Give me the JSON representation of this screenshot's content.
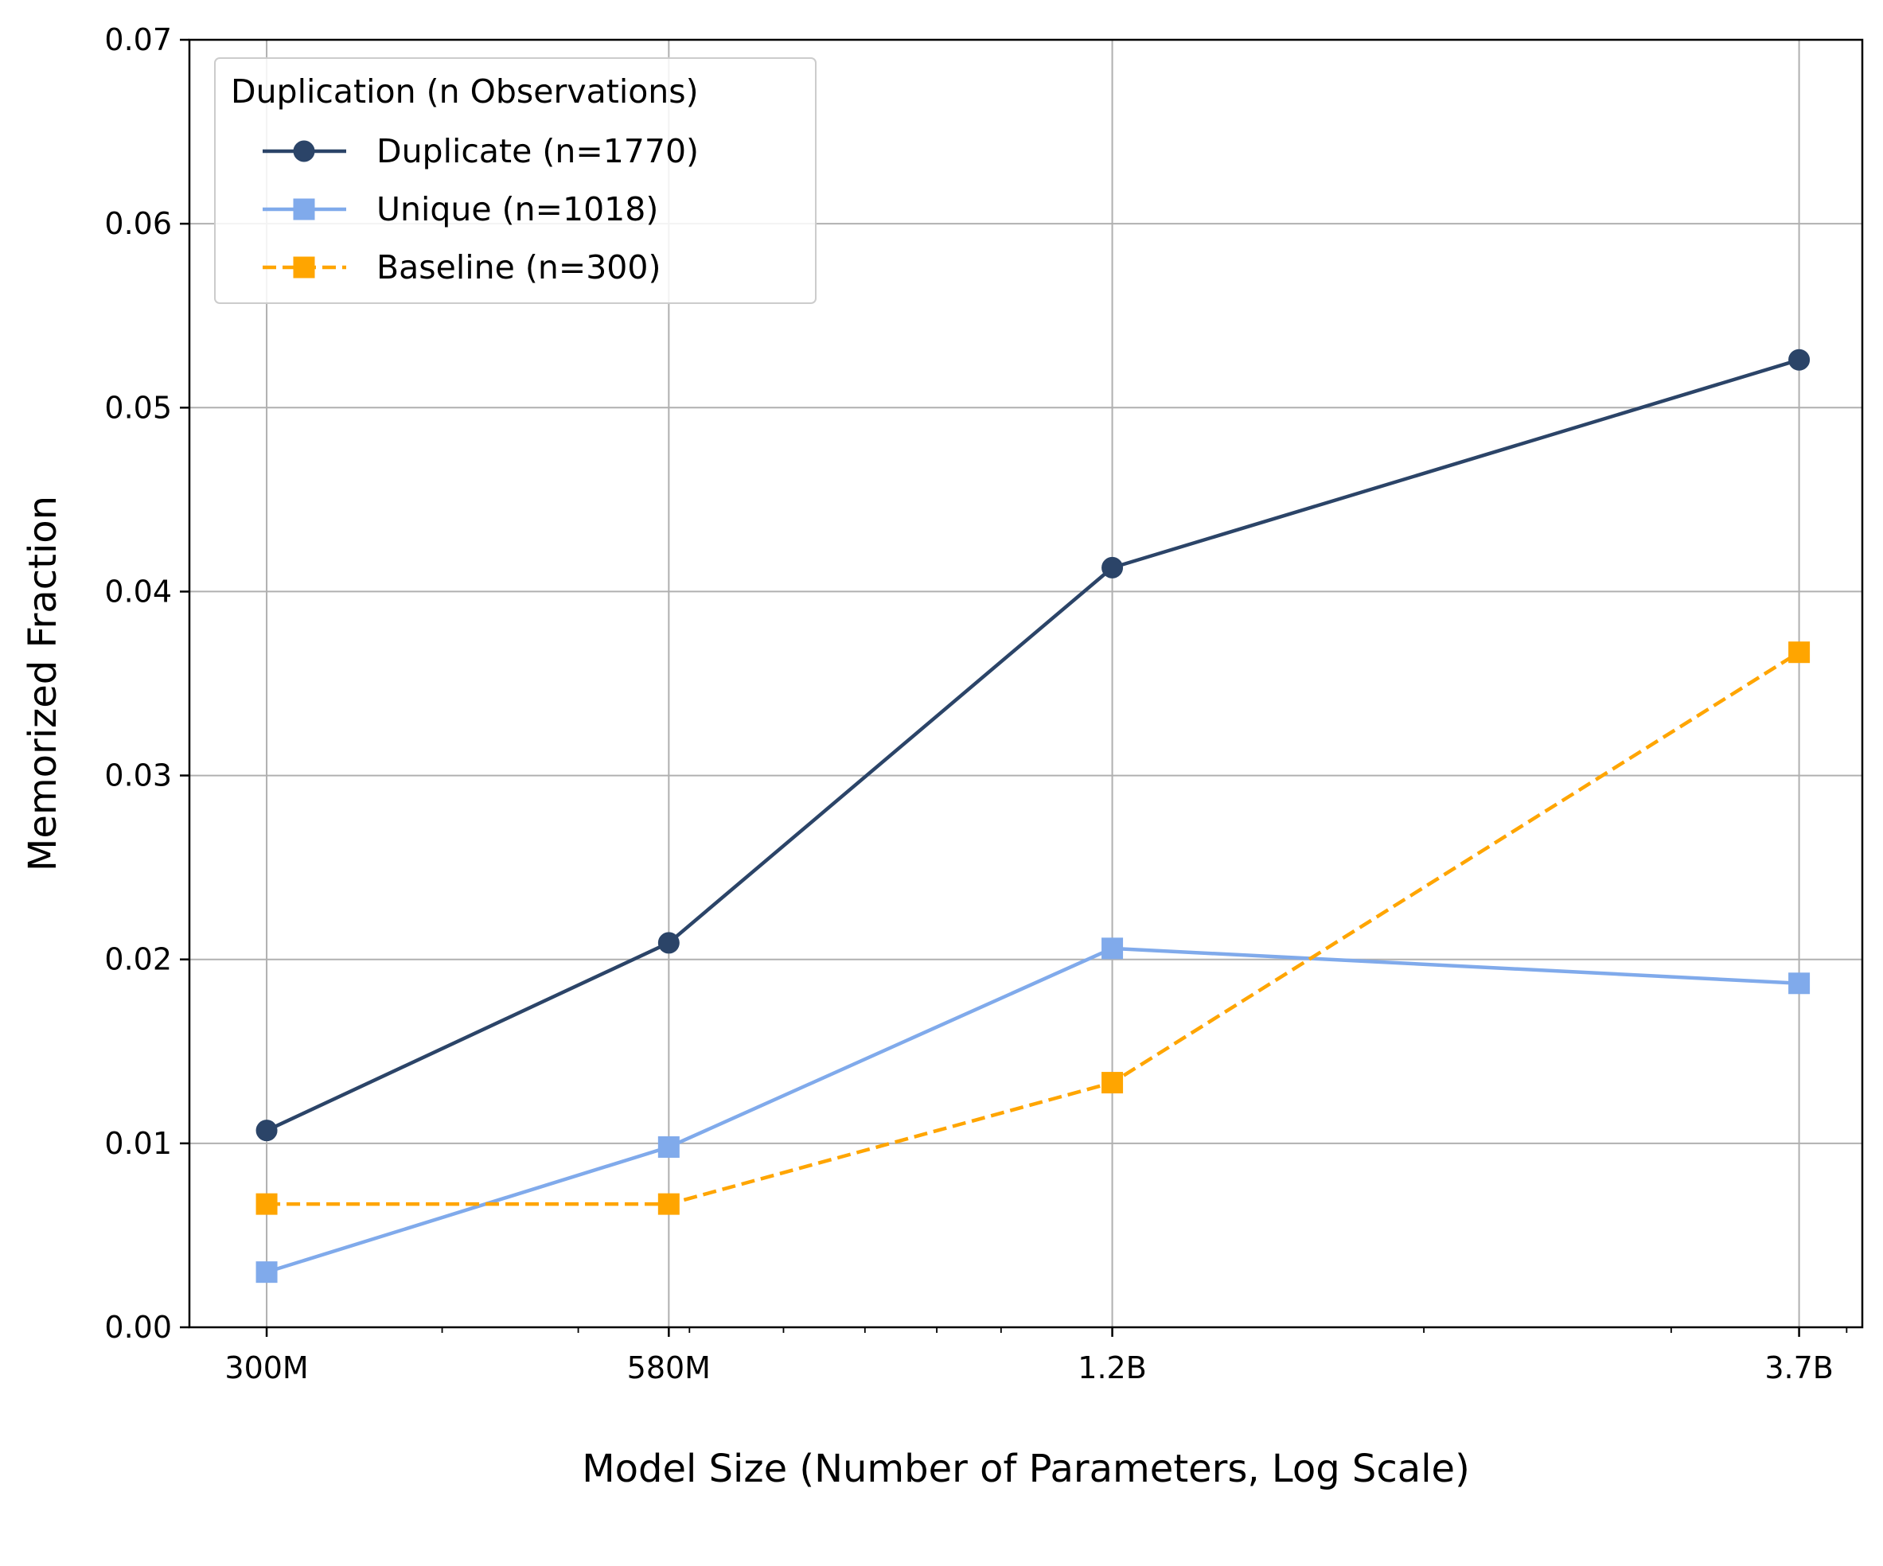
{
  "chart_data": {
    "type": "line",
    "xscale": "log",
    "categories": [
      "300M",
      "580M",
      "1.2B",
      "3.7B"
    ],
    "x": [
      300000000,
      580000000,
      1200000000,
      3700000000
    ],
    "xlabel": "Model Size (Number of Parameters, Log Scale)",
    "ylabel": "Memorized Fraction",
    "ylim": [
      0,
      0.07
    ],
    "yticks": [
      "0.00",
      "0.01",
      "0.02",
      "0.03",
      "0.04",
      "0.05",
      "0.06",
      "0.07"
    ],
    "grid": true,
    "legend": {
      "title": "Duplication (n Observations)",
      "placement": "top-left"
    },
    "series": [
      {
        "name": "Duplicate (n=1770)",
        "values": [
          0.0107,
          0.0209,
          0.0413,
          0.0526
        ],
        "color": "#2b4468",
        "marker": "circle",
        "line": "solid"
      },
      {
        "name": "Unique (n=1018)",
        "values": [
          0.003,
          0.0098,
          0.0206,
          0.0187
        ],
        "color": "#80aaeb",
        "marker": "square",
        "line": "solid"
      },
      {
        "name": "Baseline (n=300)",
        "values": [
          0.0067,
          0.0067,
          0.0133,
          0.0367
        ],
        "color": "#ffa500",
        "marker": "square",
        "line": "dashed"
      }
    ]
  }
}
